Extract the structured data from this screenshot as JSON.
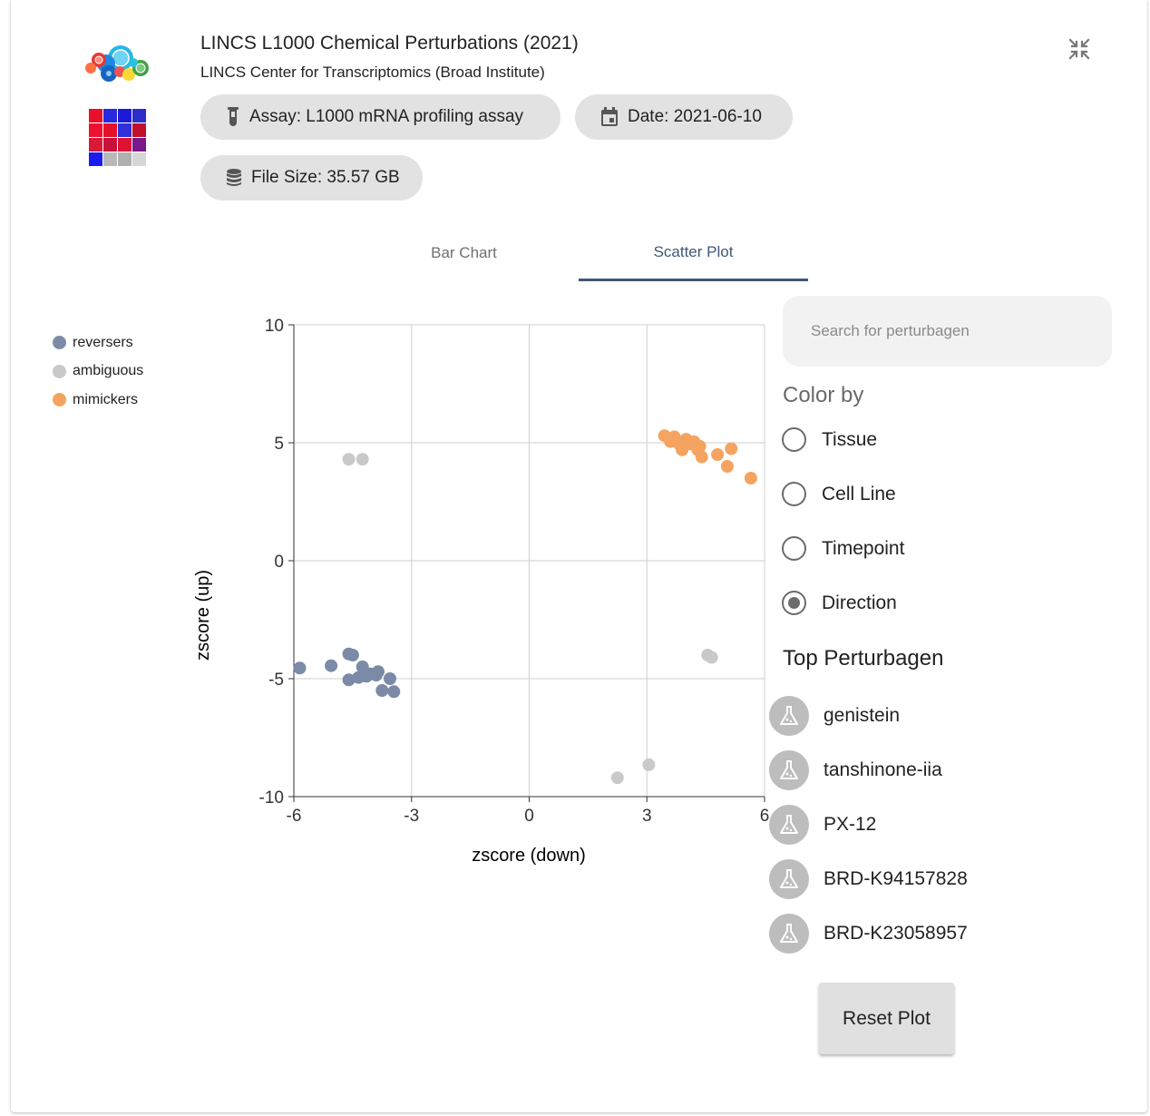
{
  "header": {
    "title": "LINCS L1000 Chemical Perturbations (2021)",
    "subtitle": "LINCS Center for Transcriptomics (Broad Institute)",
    "collapse_icon": "collapse-arrows-icon"
  },
  "chips": {
    "assay": "Assay: L1000 mRNA profiling assay",
    "date": "Date: 2021-06-10",
    "file_size": "File Size: 35.57 GB"
  },
  "tabs": [
    {
      "label": "Bar Chart",
      "active": false
    },
    {
      "label": "Scatter Plot",
      "active": true
    }
  ],
  "legend": [
    {
      "label": "reversers",
      "color": "#7b8aa6"
    },
    {
      "label": "ambiguous",
      "color": "#c9c9c9"
    },
    {
      "label": "mimickers",
      "color": "#f4a460"
    }
  ],
  "search": {
    "placeholder": "Search for perturbagen",
    "value": ""
  },
  "color_by": {
    "title": "Color by",
    "options": [
      {
        "label": "Tissue",
        "selected": false
      },
      {
        "label": "Cell Line",
        "selected": false
      },
      {
        "label": "Timepoint",
        "selected": false
      },
      {
        "label": "Direction",
        "selected": true
      }
    ]
  },
  "top_perturbagens": {
    "title": "Top Perturbagen",
    "items": [
      {
        "label": "genistein",
        "icon": "flask-icon"
      },
      {
        "label": "tanshinone-iia",
        "icon": "flask-icon"
      },
      {
        "label": "PX-12",
        "icon": "flask-icon"
      },
      {
        "label": "BRD-K94157828",
        "icon": "flask-icon"
      },
      {
        "label": "BRD-K23058957",
        "icon": "flask-icon"
      }
    ]
  },
  "reset_button": "Reset Plot",
  "chart_data": {
    "type": "scatter",
    "title": "",
    "xlabel": "zscore (down)",
    "ylabel": "zscore (up)",
    "xlim": [
      -6,
      6
    ],
    "ylim": [
      -10,
      10
    ],
    "xticks": [
      -6,
      -3,
      0,
      3,
      6
    ],
    "yticks": [
      10,
      5,
      0,
      -5,
      -10
    ],
    "xtick_labels": [
      "-6",
      "-3",
      "0",
      "3",
      "6"
    ],
    "ytick_labels": [
      "10",
      "5",
      "0",
      "-5",
      "-10"
    ],
    "grid": true,
    "series": [
      {
        "name": "reversers",
        "color": "#7b8aa6",
        "points": [
          [
            -5.85,
            -4.55
          ],
          [
            -5.05,
            -4.45
          ],
          [
            -4.6,
            -3.95
          ],
          [
            -4.5,
            -4.0
          ],
          [
            -4.6,
            -5.05
          ],
          [
            -4.35,
            -4.95
          ],
          [
            -4.25,
            -4.5
          ],
          [
            -4.15,
            -4.9
          ],
          [
            -4.05,
            -4.8
          ],
          [
            -3.9,
            -4.85
          ],
          [
            -3.85,
            -4.7
          ],
          [
            -3.75,
            -5.5
          ],
          [
            -3.55,
            -5.0
          ],
          [
            -3.45,
            -5.55
          ]
        ]
      },
      {
        "name": "ambiguous",
        "color": "#c9c9c9",
        "points": [
          [
            -4.6,
            4.3
          ],
          [
            -4.25,
            4.3
          ],
          [
            4.55,
            -4.0
          ],
          [
            4.65,
            -4.1
          ],
          [
            2.25,
            -9.2
          ],
          [
            3.05,
            -8.65
          ]
        ]
      },
      {
        "name": "mimickers",
        "color": "#f4a460",
        "points": [
          [
            3.45,
            5.3
          ],
          [
            3.6,
            5.05
          ],
          [
            3.7,
            5.25
          ],
          [
            3.8,
            5.0
          ],
          [
            3.85,
            4.9
          ],
          [
            3.9,
            4.7
          ],
          [
            4.0,
            5.15
          ],
          [
            4.1,
            4.95
          ],
          [
            4.2,
            5.05
          ],
          [
            4.3,
            4.7
          ],
          [
            4.35,
            4.85
          ],
          [
            4.4,
            4.4
          ],
          [
            4.8,
            4.5
          ],
          [
            5.05,
            4.0
          ],
          [
            5.15,
            4.75
          ],
          [
            5.65,
            3.5
          ]
        ]
      }
    ]
  }
}
